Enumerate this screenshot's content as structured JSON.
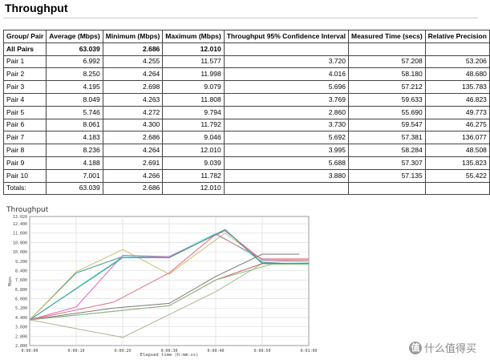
{
  "page": {
    "title": "Throughput"
  },
  "table": {
    "headers": [
      "Group/ Pair",
      "Average (Mbps)",
      "Minimum (Mbps)",
      "Maximum (Mbps)",
      "Throughput 95% Confidence Interval",
      "Measured Time (secs)",
      "Relative Precision"
    ],
    "rows": [
      [
        "All Pairs",
        "63.039",
        "2.686",
        "12.010",
        "",
        "",
        ""
      ],
      [
        "Pair 1",
        "6.992",
        "4.255",
        "11.577",
        "3.720",
        "57.208",
        "53.206"
      ],
      [
        "Pair 2",
        "8.250",
        "4.264",
        "11.998",
        "4.016",
        "58.180",
        "48.680"
      ],
      [
        "Pair 3",
        "4.195",
        "2.698",
        "9.079",
        "5.696",
        "57.212",
        "135.783"
      ],
      [
        "Pair 4",
        "8.049",
        "4.263",
        "11.808",
        "3.769",
        "59.633",
        "46.823"
      ],
      [
        "Pair 5",
        "5.746",
        "4.272",
        "9.794",
        "2.860",
        "55.690",
        "49.773"
      ],
      [
        "Pair 6",
        "8.061",
        "4.300",
        "11.792",
        "3.730",
        "59.547",
        "46.275"
      ],
      [
        "Pair 7",
        "4.183",
        "2.686",
        "9.046",
        "5.692",
        "57.381",
        "136.077"
      ],
      [
        "Pair 8",
        "8.236",
        "4.264",
        "12.010",
        "3.995",
        "58.284",
        "48.508"
      ],
      [
        "Pair 9",
        "4.188",
        "2.691",
        "9.039",
        "5.688",
        "57.307",
        "135.823"
      ],
      [
        "Pair 10",
        "7.001",
        "4.266",
        "11.782",
        "3.880",
        "57.135",
        "55.422"
      ],
      [
        "Totals:",
        "63.039",
        "2.686",
        "12.010",
        "",
        "",
        ""
      ]
    ]
  },
  "chart_data": {
    "type": "line",
    "title": "Throughput",
    "xlabel": "Elapsed time (h:mm:ss)",
    "ylabel": "Mbps",
    "x_ticks": [
      "0:00:00",
      "0:00:10",
      "0:00:20",
      "0:00:30",
      "0:00:40",
      "0:00:50",
      "0:01:00"
    ],
    "y_ticks": [
      "2.000",
      "2.800",
      "3.600",
      "4.400",
      "5.200",
      "6.000",
      "6.800",
      "7.600",
      "8.400",
      "9.200",
      "10.000",
      "10.800",
      "11.600",
      "12.400",
      "13.020"
    ],
    "xlim": [
      0,
      60
    ],
    "ylim": [
      2.0,
      13.02
    ],
    "grid": true,
    "series": [
      {
        "color": "#3a9a8a",
        "points": [
          [
            0,
            4.2
          ],
          [
            10,
            8.2
          ],
          [
            20,
            9.6
          ],
          [
            30,
            9.5
          ],
          [
            42,
            11.9
          ],
          [
            50,
            9.1
          ],
          [
            58,
            8.95
          ]
        ]
      },
      {
        "color": "#c8c070",
        "points": [
          [
            0,
            4.2
          ],
          [
            10,
            8.3
          ],
          [
            20,
            10.2
          ],
          [
            30,
            8.1
          ],
          [
            42,
            11.6
          ],
          [
            50,
            9.3
          ],
          [
            60,
            9.2
          ]
        ]
      },
      {
        "color": "#70ece8",
        "points": [
          [
            0,
            4.2
          ],
          [
            20,
            9.6
          ],
          [
            30,
            9.6
          ],
          [
            40,
            11.6
          ],
          [
            50,
            9.2
          ],
          [
            60,
            9.1
          ]
        ]
      },
      {
        "color": "#e060c0",
        "points": [
          [
            0,
            4.2
          ],
          [
            10,
            5.3
          ],
          [
            20,
            9.7
          ],
          [
            30,
            9.6
          ],
          [
            42,
            11.8
          ],
          [
            50,
            9.3
          ],
          [
            60,
            9.3
          ]
        ]
      },
      {
        "color": "#e07080",
        "points": [
          [
            0,
            4.2
          ],
          [
            18,
            5.7
          ],
          [
            30,
            8.2
          ],
          [
            40,
            11.5
          ],
          [
            50,
            9.4
          ],
          [
            60,
            9.4
          ]
        ]
      },
      {
        "color": "#3a9a8a",
        "points": [
          [
            0,
            4.2
          ],
          [
            20,
            9.5
          ],
          [
            30,
            9.5
          ],
          [
            42,
            11.9
          ],
          [
            50,
            9.0
          ],
          [
            60,
            9.0
          ]
        ]
      },
      {
        "color": "#a8b890",
        "points": [
          [
            0,
            4.2
          ],
          [
            20,
            2.7
          ],
          [
            40,
            6.6
          ],
          [
            50,
            9.0
          ],
          [
            60,
            9.0
          ]
        ]
      },
      {
        "color": "#7a7a7a",
        "points": [
          [
            0,
            4.2
          ],
          [
            18,
            5.2
          ],
          [
            30,
            5.6
          ],
          [
            40,
            7.9
          ],
          [
            50,
            9.8
          ],
          [
            58,
            9.8
          ]
        ]
      },
      {
        "color": "#c05050",
        "points": [
          [
            0,
            4.2
          ],
          [
            30,
            5.4
          ],
          [
            40,
            7.6
          ],
          [
            50,
            9.0
          ],
          [
            60,
            9.0
          ]
        ]
      },
      {
        "color": "#80c080",
        "points": [
          [
            0,
            4.2
          ],
          [
            30,
            5.4
          ],
          [
            40,
            7.6
          ],
          [
            52,
            8.95
          ],
          [
            60,
            8.95
          ]
        ]
      }
    ]
  },
  "watermark": {
    "badge": "值",
    "text": "什么值得买"
  }
}
